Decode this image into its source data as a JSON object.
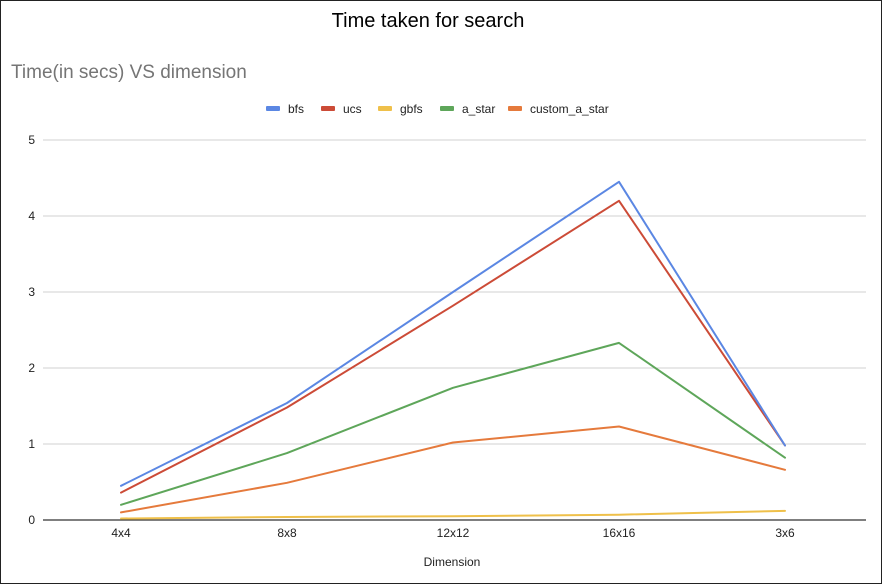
{
  "page_title": "Time taken for search",
  "chart_data": {
    "type": "line",
    "title": "Time(in secs) VS dimension",
    "xlabel": "Dimension",
    "ylabel": "",
    "categories": [
      "4x4",
      "8x8",
      "12x12",
      "16x16",
      "3x6"
    ],
    "ylim": [
      0,
      5
    ],
    "yticks": [
      0,
      1,
      2,
      3,
      4,
      5
    ],
    "grid": true,
    "legend_position": "top",
    "series": [
      {
        "name": "bfs",
        "color": "#5b87e3",
        "values": [
          0.45,
          1.54,
          3.0,
          4.45,
          0.98
        ]
      },
      {
        "name": "ucs",
        "color": "#cc4b37",
        "values": [
          0.36,
          1.48,
          2.82,
          4.2,
          0.98
        ]
      },
      {
        "name": "gbfs",
        "color": "#efc04a",
        "values": [
          0.02,
          0.04,
          0.05,
          0.07,
          0.12
        ]
      },
      {
        "name": "a_star",
        "color": "#5ea65a",
        "values": [
          0.2,
          0.88,
          1.74,
          2.33,
          0.82
        ]
      },
      {
        "name": "custom_a_star",
        "color": "#e57a3c",
        "values": [
          0.1,
          0.49,
          1.02,
          1.23,
          0.66
        ]
      }
    ]
  }
}
